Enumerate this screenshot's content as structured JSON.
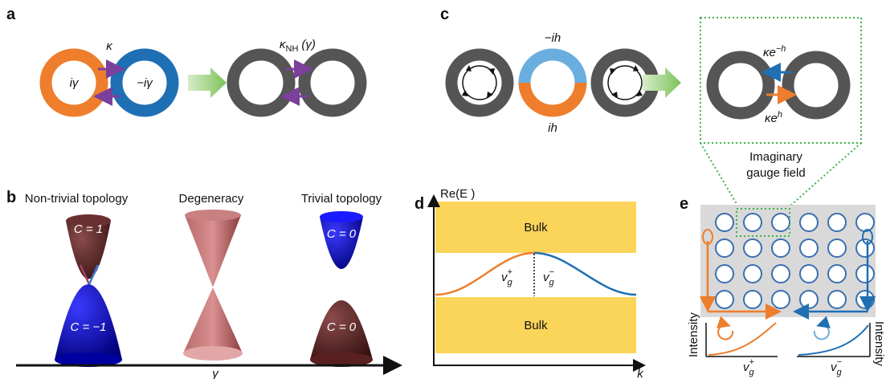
{
  "panel_labels": [
    "a",
    "b",
    "c",
    "d",
    "e"
  ],
  "panel_a": {
    "coupling": "κ",
    "gain": "iγ",
    "loss": "−iγ",
    "nh_coupling": {
      "base": "κ",
      "sub": "NH",
      "arg": "(γ)"
    }
  },
  "panel_b": {
    "titles": [
      "Non-trivial topology",
      "Degeneracy",
      "Trivial topology"
    ],
    "chern": [
      "C = 1",
      "C = −1",
      "C = 0",
      "C = 0"
    ],
    "axis": "γ"
  },
  "panel_c": {
    "loss": "−ih",
    "gain": "ih",
    "left_coupling": {
      "base": "κe",
      "sup": "−h"
    },
    "right_coupling": {
      "base": "κe",
      "sup": "h"
    },
    "field_label": [
      "Imaginary",
      "gauge field"
    ]
  },
  "panel_d": {
    "y_label": "Re(E )",
    "bulk": [
      "Bulk",
      "Bulk"
    ],
    "vg_plus": {
      "base": "v",
      "sub": "g",
      "sup": "+"
    },
    "vg_minus": {
      "base": "v",
      "sub": "g",
      "sup": "−"
    },
    "x_label": "k"
  },
  "panel_e": {
    "y_labels": [
      "Intensity",
      "Intensity"
    ],
    "x_labels": [
      {
        "base": "v",
        "sub": "g",
        "sup": "+"
      },
      {
        "base": "v",
        "sub": "g",
        "sup": "−"
      }
    ]
  }
}
